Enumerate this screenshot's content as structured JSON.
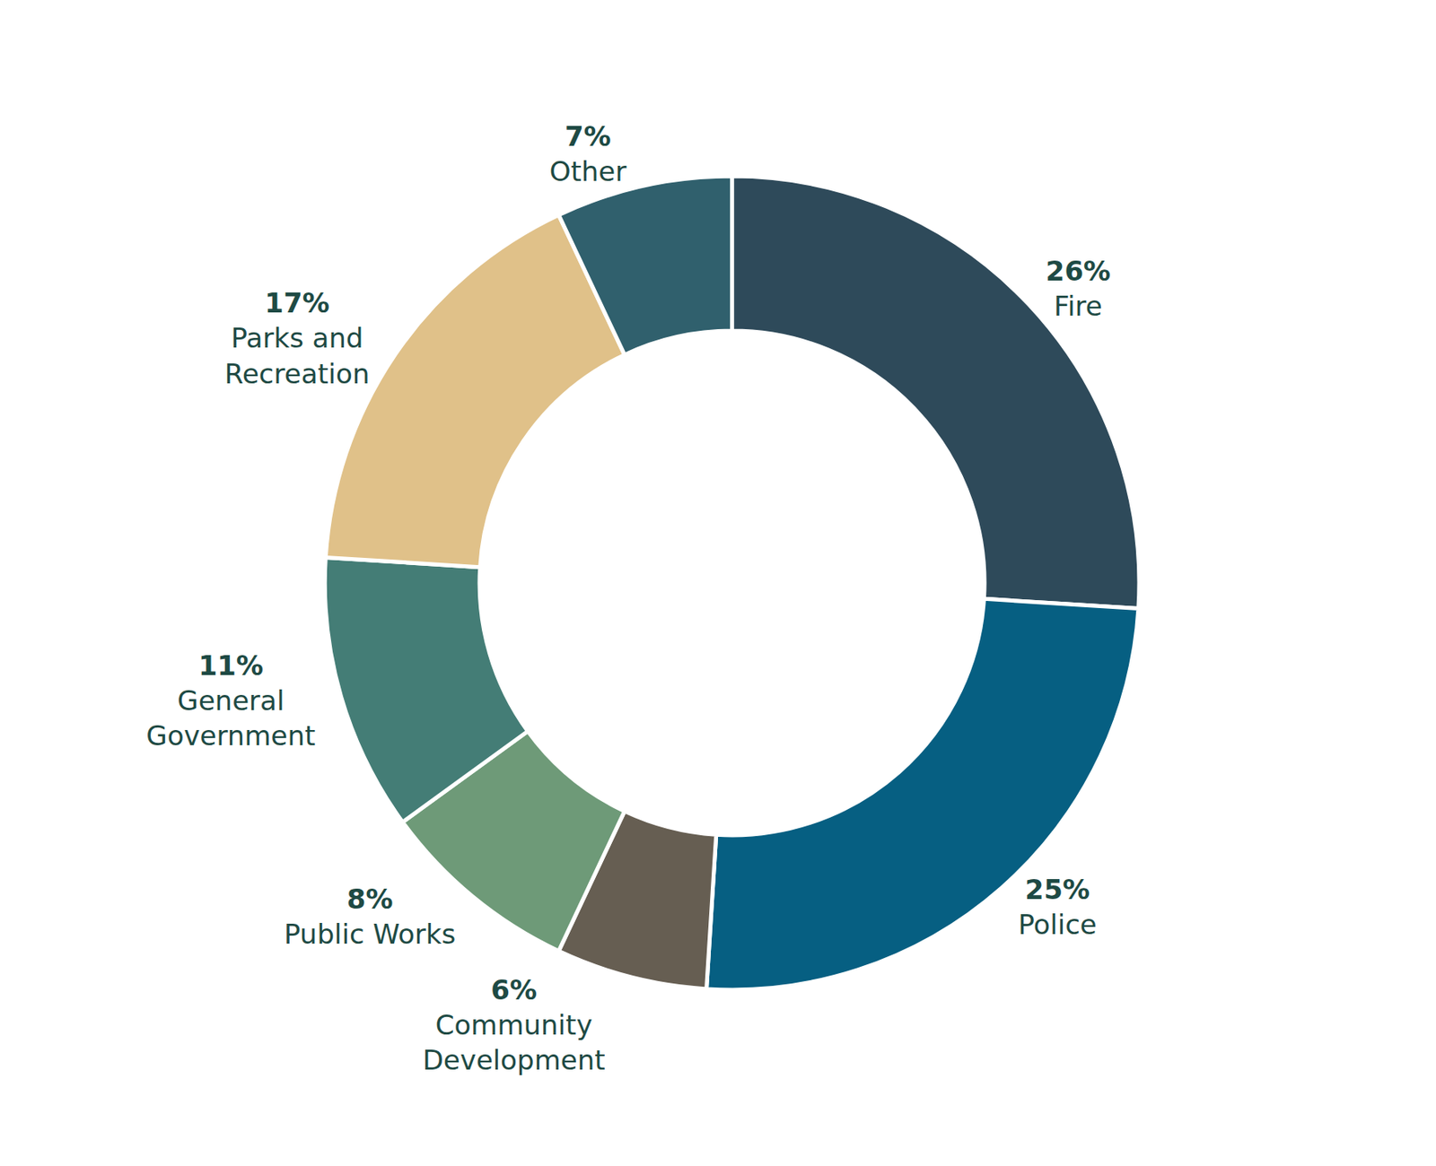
{
  "chart_data": {
    "type": "pie",
    "categories": [
      "Fire",
      "Police",
      "Community Development",
      "Public Works",
      "General Government",
      "Parks and Recreation",
      "Other"
    ],
    "values": [
      26,
      25,
      6,
      8,
      11,
      17,
      7
    ],
    "value_labels": [
      "26%",
      "25%",
      "6%",
      "8%",
      "11%",
      "17%",
      "7%"
    ],
    "colors": [
      "#2e4a5a",
      "#065f82",
      "#665e52",
      "#6e9a78",
      "#447d76",
      "#e0c189",
      "#30606d"
    ],
    "data_labels": true
  }
}
